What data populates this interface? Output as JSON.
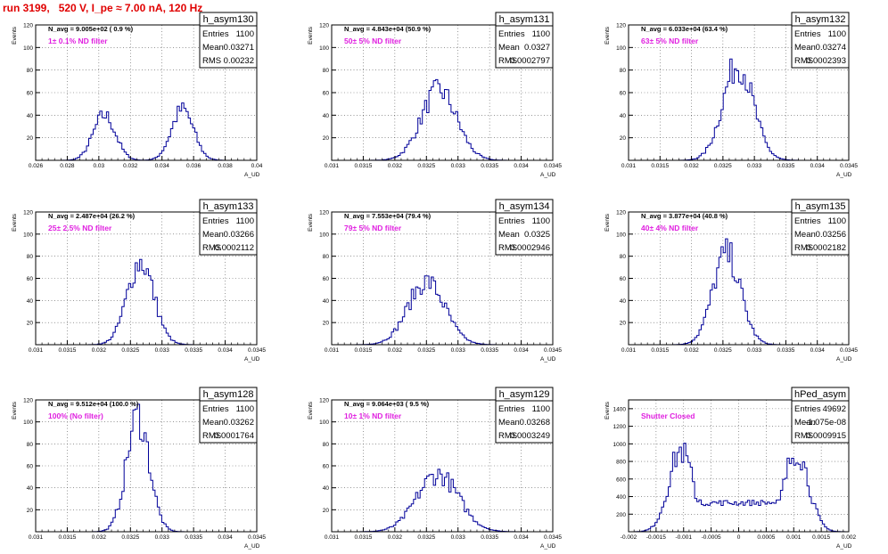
{
  "page": {
    "title": "run 3199,   520 V, I_pe ≈ 7.00 nA, 120 Hz"
  },
  "chart_data": [
    {
      "type": "histogram",
      "name": "h_asym130",
      "navg": "N_avg = 9.005e+02 ( 0.9 %)",
      "note": "1± 0.1% ND filter",
      "stats": {
        "Entries": "1100",
        "Mean": "0.03271",
        "RMS": "0.00232"
      },
      "xlabel": "A_UD",
      "ylabel": "Events",
      "xlim": [
        0.026,
        0.04
      ],
      "ylim": [
        0,
        120
      ],
      "yticks": [
        20,
        40,
        60,
        80,
        100,
        120
      ],
      "xticks": [
        0.026,
        0.028,
        0.03,
        0.032,
        0.034,
        0.036,
        0.038,
        0.04
      ],
      "xtick_labels": [
        "0.026",
        "0.028",
        "0.03",
        "0.032",
        "0.034",
        "0.036",
        "0.038",
        "0.04"
      ],
      "dist": [
        [
          0.03035,
          0.0007,
          0.47
        ],
        [
          0.0353,
          0.0007,
          0.53
        ]
      ],
      "peak": 45
    },
    {
      "type": "histogram",
      "name": "h_asym131",
      "navg": "N_avg = 4.843e+04 (50.9 %)",
      "note": "50± 5% ND filter",
      "stats": {
        "Entries": "1100",
        "Mean": "0.0327",
        "RMS": "0.0002797"
      },
      "xlabel": "A_UD",
      "ylabel": "Events",
      "xlim": [
        0.031,
        0.0345
      ],
      "ylim": [
        0,
        120
      ],
      "yticks": [
        20,
        40,
        60,
        80,
        100,
        120
      ],
      "xticks": [
        0.031,
        0.0315,
        0.032,
        0.0325,
        0.033,
        0.0335,
        0.034,
        0.0345
      ],
      "xtick_labels": [
        "0.031",
        "0.0315",
        "0.032",
        "0.0325",
        "0.033",
        "0.0335",
        "0.034",
        "0.0345"
      ],
      "dist": [
        [
          0.0327,
          0.00028,
          1
        ]
      ],
      "peak": 62
    },
    {
      "type": "histogram",
      "name": "h_asym132",
      "navg": "N_avg = 6.033e+04 (63.4 %)",
      "note": "63± 5% ND filter",
      "stats": {
        "Entries": "1100",
        "Mean": "0.03274",
        "RMS": "0.0002393"
      },
      "xlabel": "A_UD",
      "ylabel": "Events",
      "xlim": [
        0.031,
        0.0345
      ],
      "ylim": [
        0,
        120
      ],
      "yticks": [
        20,
        40,
        60,
        80,
        100,
        120
      ],
      "xticks": [
        0.031,
        0.0315,
        0.032,
        0.0325,
        0.033,
        0.0335,
        0.034,
        0.0345
      ],
      "xtick_labels": [
        "0.031",
        "0.0315",
        "0.032",
        "0.0325",
        "0.033",
        "0.0335",
        "0.034",
        "0.0345"
      ],
      "dist": [
        [
          0.03274,
          0.00024,
          1
        ]
      ],
      "peak": 85
    },
    {
      "type": "histogram",
      "name": "h_asym133",
      "navg": "N_avg = 2.487e+04 (26.2 %)",
      "note": "25± 2.5% ND filter",
      "stats": {
        "Entries": "1100",
        "Mean": "0.03266",
        "RMS": "0.0002112"
      },
      "xlabel": "A_UD",
      "ylabel": "Events",
      "xlim": [
        0.031,
        0.0345
      ],
      "ylim": [
        0,
        120
      ],
      "yticks": [
        20,
        40,
        60,
        80,
        100,
        120
      ],
      "xticks": [
        0.031,
        0.0315,
        0.032,
        0.0325,
        0.033,
        0.0335,
        0.034,
        0.0345
      ],
      "xtick_labels": [
        "0.031",
        "0.0315",
        "0.032",
        "0.0325",
        "0.033",
        "0.0335",
        "0.034",
        "0.0345"
      ],
      "dist": [
        [
          0.03266,
          0.00021,
          1
        ]
      ],
      "peak": 75
    },
    {
      "type": "histogram",
      "name": "h_asym134",
      "navg": "N_avg = 7.553e+04 (79.4 %)",
      "note": "79± 5% ND filter",
      "stats": {
        "Entries": "1100",
        "Mean": "0.0325",
        "RMS": "0.0002946"
      },
      "xlabel": "A_UD",
      "ylabel": "Events",
      "xlim": [
        0.031,
        0.0345
      ],
      "ylim": [
        0,
        120
      ],
      "yticks": [
        20,
        40,
        60,
        80,
        100,
        120
      ],
      "xticks": [
        0.031,
        0.0315,
        0.032,
        0.0325,
        0.033,
        0.0335,
        0.034,
        0.0345
      ],
      "xtick_labels": [
        "0.031",
        "0.0315",
        "0.032",
        "0.0325",
        "0.033",
        "0.0335",
        "0.034",
        "0.0345"
      ],
      "dist": [
        [
          0.0325,
          0.00029,
          1
        ]
      ],
      "peak": 57
    },
    {
      "type": "histogram",
      "name": "h_asym135",
      "navg": "N_avg = 3.877e+04 (40.8 %)",
      "note": "40± 4% ND filter",
      "stats": {
        "Entries": "1100",
        "Mean": "0.03256",
        "RMS": "0.0002182"
      },
      "xlabel": "A_UD",
      "ylabel": "Events",
      "xlim": [
        0.031,
        0.0345
      ],
      "ylim": [
        0,
        120
      ],
      "yticks": [
        20,
        40,
        60,
        80,
        100,
        120
      ],
      "xticks": [
        0.031,
        0.0315,
        0.032,
        0.0325,
        0.033,
        0.0335,
        0.034,
        0.0345
      ],
      "xtick_labels": [
        "0.031",
        "0.0315",
        "0.032",
        "0.0325",
        "0.033",
        "0.0335",
        "0.034",
        "0.0345"
      ],
      "dist": [
        [
          0.03256,
          0.00022,
          1
        ]
      ],
      "peak": 82
    },
    {
      "type": "histogram",
      "name": "h_asym128",
      "navg": "N_avg = 9.512e+04 (100.0 %)",
      "note": "100% (No filter)",
      "stats": {
        "Entries": "1100",
        "Mean": "0.03262",
        "RMS": "0.0001764"
      },
      "xlabel": "A_UD",
      "ylabel": "Events",
      "xlim": [
        0.031,
        0.0345
      ],
      "ylim": [
        0,
        120
      ],
      "yticks": [
        20,
        40,
        60,
        80,
        100,
        120
      ],
      "xticks": [
        0.031,
        0.0315,
        0.032,
        0.0325,
        0.033,
        0.0335,
        0.034,
        0.0345
      ],
      "xtick_labels": [
        "0.031",
        "0.0315",
        "0.032",
        "0.0325",
        "0.033",
        "0.0335",
        "0.034",
        "0.0345"
      ],
      "dist": [
        [
          0.03262,
          0.00018,
          1
        ]
      ],
      "peak": 105
    },
    {
      "type": "histogram",
      "name": "h_asym129",
      "navg": "N_avg = 9.064e+03 ( 9.5 %)",
      "note": "10± 1% ND filter",
      "stats": {
        "Entries": "1100",
        "Mean": "0.03268",
        "RMS": "0.0003249"
      },
      "xlabel": "A_UD",
      "ylabel": "Events",
      "xlim": [
        0.031,
        0.0345
      ],
      "ylim": [
        0,
        120
      ],
      "yticks": [
        20,
        40,
        60,
        80,
        100,
        120
      ],
      "xticks": [
        0.031,
        0.0315,
        0.032,
        0.0325,
        0.033,
        0.0335,
        0.034,
        0.0345
      ],
      "xtick_labels": [
        "0.031",
        "0.0315",
        "0.032",
        "0.0325",
        "0.033",
        "0.0335",
        "0.034",
        "0.0345"
      ],
      "dist": [
        [
          0.03268,
          0.00033,
          1
        ]
      ],
      "peak": 52
    },
    {
      "type": "histogram",
      "name": "hPed_asym",
      "navg": "",
      "note": "Shutter Closed",
      "stats": {
        "Entries": "49692",
        "Mean": "-1.075e-08",
        "RMS": "0.0009915"
      },
      "xlabel": "A_UD",
      "ylabel": "Events",
      "xlim": [
        -0.002,
        0.002
      ],
      "ylim": [
        0,
        1500
      ],
      "yticks": [
        200,
        400,
        600,
        800,
        1000,
        1200,
        1400
      ],
      "xticks": [
        -0.002,
        -0.0015,
        -0.001,
        -0.0005,
        0,
        0.0005,
        0.001,
        0.0015,
        0.002
      ],
      "xtick_labels": [
        "-0.002",
        "-0.0015",
        "-0.001",
        "-0.0005",
        "0",
        "0.0005",
        "0.001",
        "0.0015",
        "0.002"
      ],
      "dist": [
        [
          -0.00105,
          0.00022,
          0.55
        ],
        [
          0.00105,
          0.00022,
          0.55
        ]
      ],
      "peak": 1250,
      "floor": 330
    }
  ]
}
